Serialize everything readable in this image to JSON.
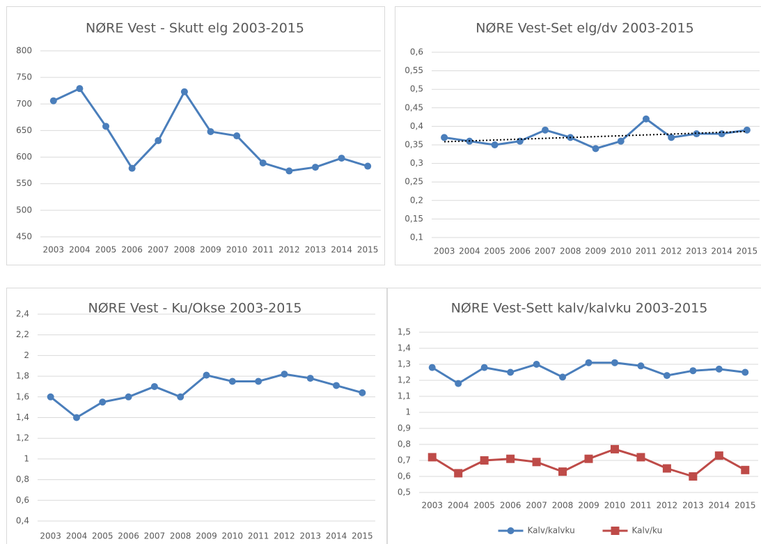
{
  "chart_data": [
    {
      "type": "line",
      "title": "NØRE Vest - Skutt elg 2003-2015",
      "categories": [
        "2003",
        "2004",
        "2005",
        "2006",
        "2007",
        "2008",
        "2009",
        "2010",
        "2011",
        "2012",
        "2013",
        "2014",
        "2015"
      ],
      "series": [
        {
          "name": null,
          "color": "#4a7ebb",
          "marker": "circle",
          "values": [
            706,
            729,
            658,
            579,
            631,
            723,
            648,
            640,
            589,
            574,
            581,
            598,
            583
          ]
        }
      ],
      "ylim": [
        450,
        800
      ],
      "yticks": [
        450,
        500,
        550,
        600,
        650,
        700,
        750,
        800
      ],
      "grid": true
    },
    {
      "type": "line",
      "title": "NØRE Vest-Set elg/dv 2003-2015",
      "categories": [
        "2003",
        "2004",
        "2005",
        "2006",
        "2007",
        "2008",
        "2009",
        "2010",
        "2011",
        "2012",
        "2013",
        "2014",
        "2015"
      ],
      "series": [
        {
          "name": null,
          "color": "#4a7ebb",
          "marker": "circle",
          "values": [
            0.37,
            0.36,
            0.35,
            0.36,
            0.39,
            0.37,
            0.34,
            0.36,
            0.42,
            0.37,
            0.38,
            0.38,
            0.39
          ]
        }
      ],
      "trendline": true,
      "trendline_color": "#000000",
      "ylim": [
        0.1,
        0.6
      ],
      "yticks": [
        {
          "value": 0.1,
          "label": "0,1"
        },
        {
          "value": 0.15,
          "label": "0,15"
        },
        {
          "value": 0.2,
          "label": "0,2"
        },
        {
          "value": 0.25,
          "label": "0,25"
        },
        {
          "value": 0.3,
          "label": "0,3"
        },
        {
          "value": 0.35,
          "label": "0,35"
        },
        {
          "value": 0.4,
          "label": "0,4"
        },
        {
          "value": 0.45,
          "label": "0,45"
        },
        {
          "value": 0.5,
          "label": "0,5"
        },
        {
          "value": 0.55,
          "label": "0,55"
        },
        {
          "value": 0.6,
          "label": "0,6"
        }
      ],
      "grid": true
    },
    {
      "type": "line",
      "title": "NØRE Vest - Ku/Okse 2003-2015",
      "categories": [
        "2003",
        "2004",
        "2005",
        "2006",
        "2007",
        "2008",
        "2009",
        "2010",
        "2011",
        "2012",
        "2013",
        "2014",
        "2015"
      ],
      "series": [
        {
          "name": null,
          "color": "#4a7ebb",
          "marker": "circle",
          "values": [
            1.6,
            1.4,
            1.55,
            1.6,
            1.7,
            1.6,
            1.81,
            1.75,
            1.75,
            1.82,
            1.78,
            1.71,
            1.64
          ]
        }
      ],
      "ylim": [
        0.4,
        2.4
      ],
      "yticks": [
        {
          "value": 0.4,
          "label": "0,4"
        },
        {
          "value": 0.6,
          "label": "0,6"
        },
        {
          "value": 0.8,
          "label": "0,8"
        },
        1,
        {
          "value": 1.2,
          "label": "1,2"
        },
        {
          "value": 1.4,
          "label": "1,4"
        },
        {
          "value": 1.6,
          "label": "1,6"
        },
        {
          "value": 1.8,
          "label": "1,8"
        },
        2,
        {
          "value": 2.2,
          "label": "2,2"
        },
        {
          "value": 2.4,
          "label": "2,4"
        }
      ],
      "grid": true
    },
    {
      "type": "line",
      "title": "NØRE Vest-Sett kalv/kalvku 2003-2015",
      "categories": [
        "2003",
        "2004",
        "2005",
        "2006",
        "2007",
        "2008",
        "2009",
        "2010",
        "2011",
        "2012",
        "2013",
        "2014",
        "2015"
      ],
      "series": [
        {
          "name": "Kalv/kalvku",
          "color": "#4a7ebb",
          "marker": "circle",
          "values": [
            1.28,
            1.18,
            1.28,
            1.25,
            1.3,
            1.22,
            1.31,
            1.31,
            1.29,
            1.23,
            1.26,
            1.27,
            1.25
          ]
        },
        {
          "name": "Kalv/ku",
          "color": "#be4b48",
          "marker": "square",
          "values": [
            0.72,
            0.62,
            0.7,
            0.71,
            0.69,
            0.63,
            0.71,
            0.77,
            0.72,
            0.65,
            0.6,
            0.73,
            0.64
          ]
        }
      ],
      "legend": "bottom",
      "ylim": [
        0.5,
        1.5
      ],
      "yticks": [
        {
          "value": 0.5,
          "label": "0,5"
        },
        {
          "value": 0.6,
          "label": "0,6"
        },
        {
          "value": 0.7,
          "label": "0,7"
        },
        {
          "value": 0.8,
          "label": "0,8"
        },
        {
          "value": 0.9,
          "label": "0,9"
        },
        1,
        {
          "value": 1.1,
          "label": "1,1"
        },
        {
          "value": 1.2,
          "label": "1,2"
        },
        {
          "value": 1.3,
          "label": "1,3"
        },
        {
          "value": 1.4,
          "label": "1,4"
        },
        {
          "value": 1.5,
          "label": "1,5"
        }
      ],
      "grid": true
    }
  ]
}
